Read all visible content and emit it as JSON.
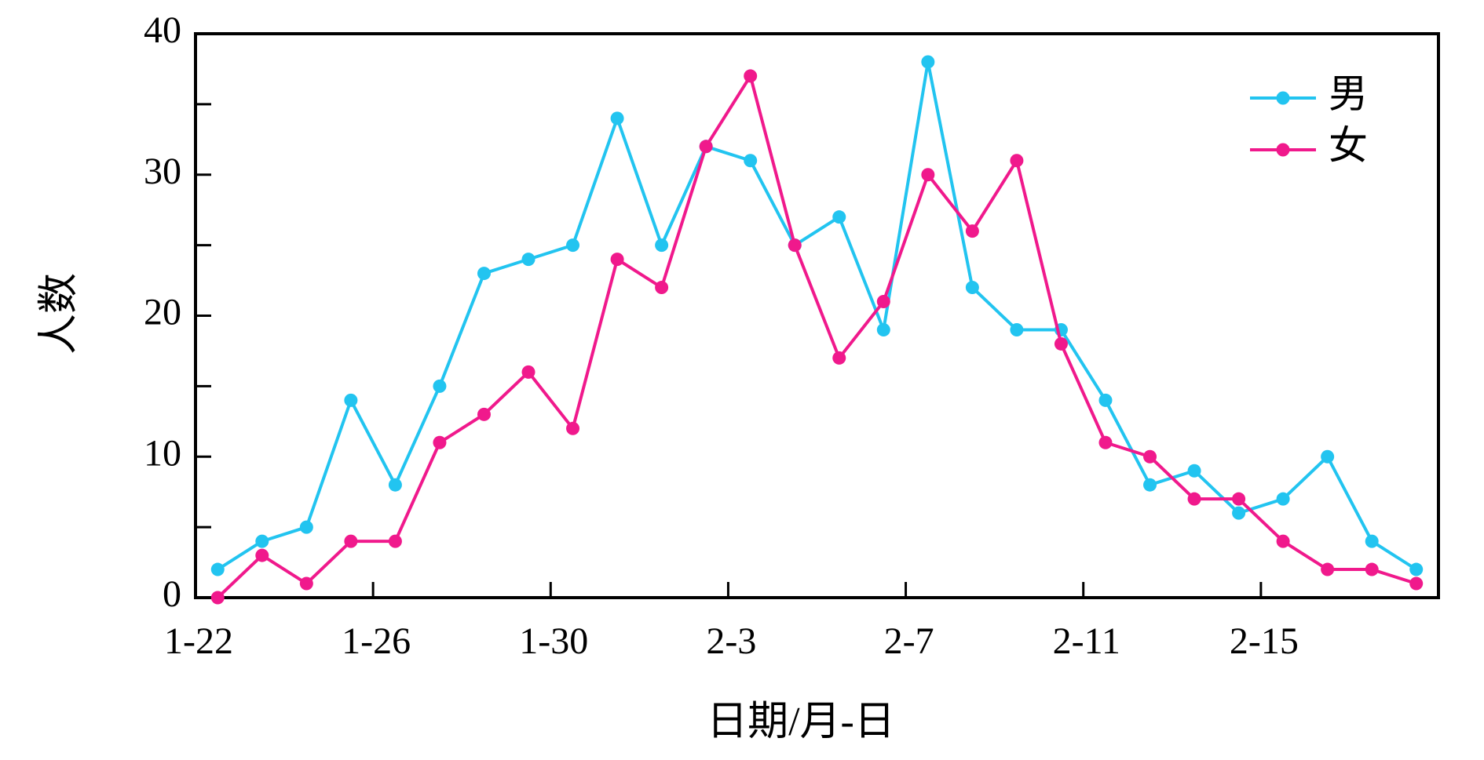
{
  "chart_data": {
    "type": "line",
    "x_label": "日期/月-日",
    "y_label": "人数",
    "categories": [
      "1-22",
      null,
      null,
      null,
      "1-26",
      null,
      null,
      null,
      "1-30",
      null,
      null,
      null,
      "2-3",
      null,
      null,
      null,
      "2-7",
      null,
      null,
      null,
      "2-11",
      null,
      null,
      null,
      "2-15",
      null,
      null,
      null
    ],
    "series": [
      {
        "name": "男",
        "color": "#22c4f0",
        "values": [
          2,
          4,
          5,
          14,
          8,
          15,
          23,
          24,
          25,
          34,
          25,
          32,
          31,
          25,
          27,
          19,
          38,
          22,
          19,
          19,
          14,
          8,
          9,
          6,
          7,
          10,
          4,
          2
        ]
      },
      {
        "name": "女",
        "color": "#f0198c",
        "values": [
          0,
          3,
          1,
          4,
          4,
          11,
          13,
          16,
          12,
          24,
          22,
          32,
          37,
          25,
          17,
          21,
          30,
          26,
          31,
          18,
          11,
          10,
          7,
          7,
          4,
          2,
          2,
          1
        ]
      }
    ],
    "ylim": [
      0,
      40
    ],
    "yticks": [
      0,
      10,
      20,
      30,
      40
    ],
    "yminorticks": [
      5,
      15,
      25,
      35
    ],
    "legend": "upper right"
  }
}
